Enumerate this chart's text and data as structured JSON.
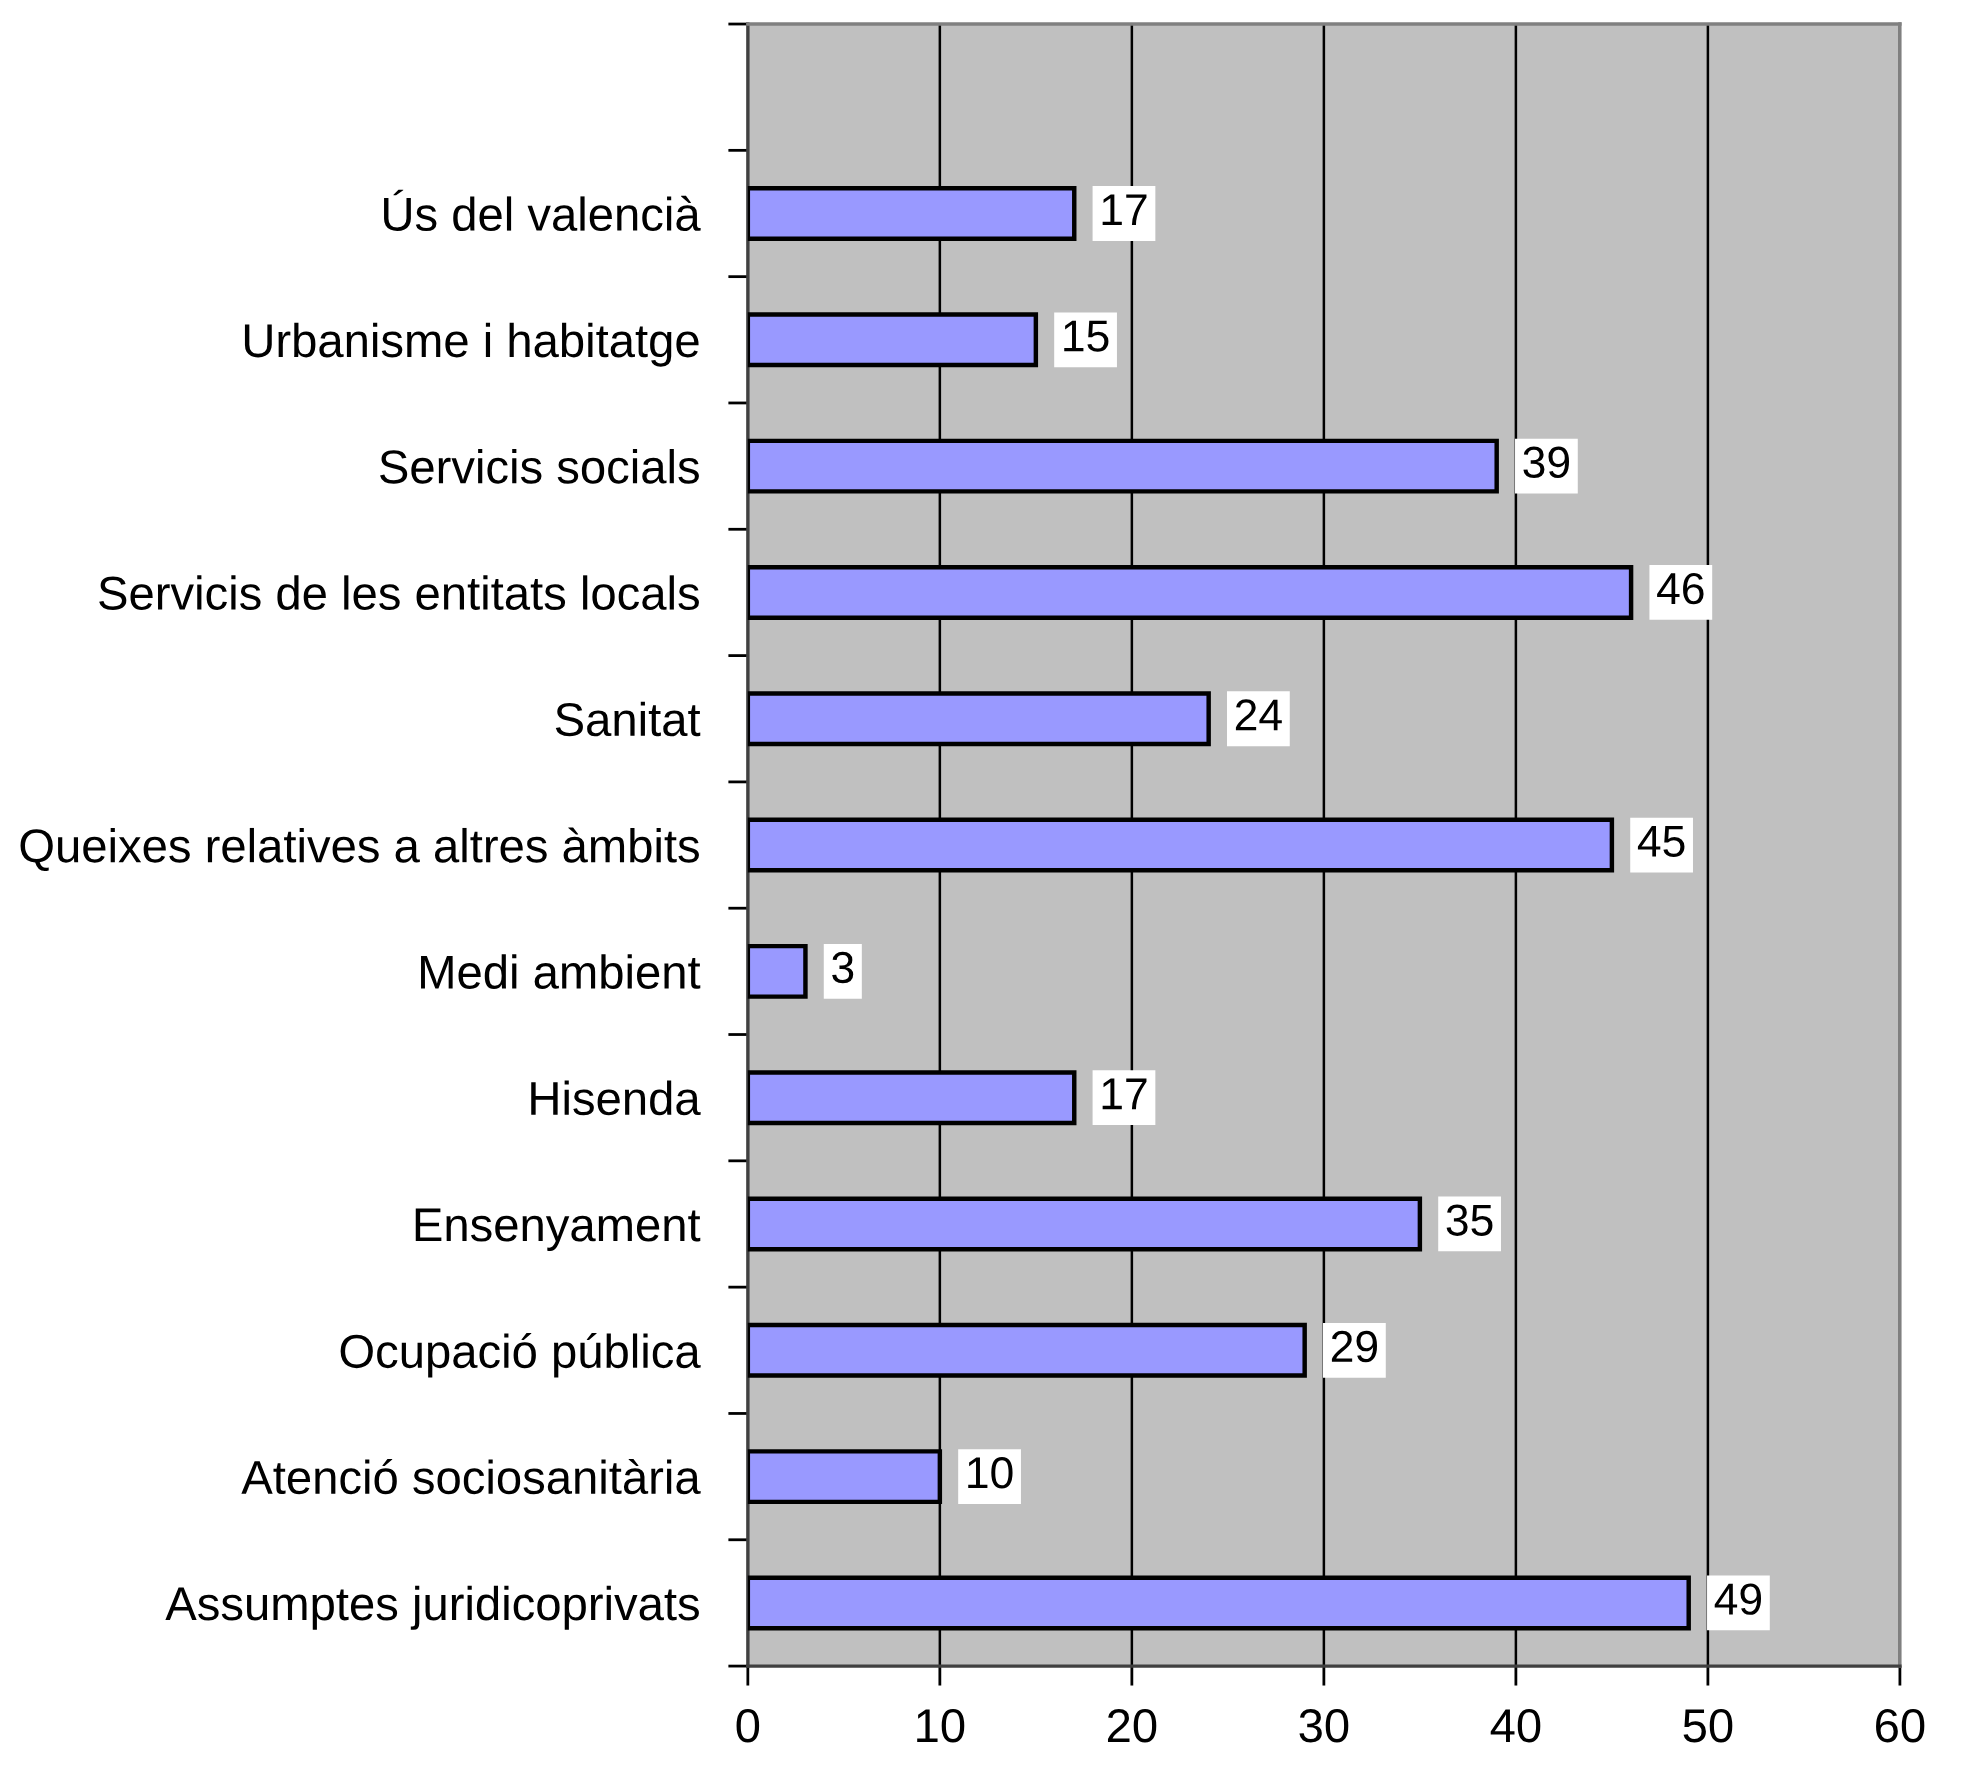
{
  "chart_data": {
    "type": "bar",
    "orientation": "horizontal",
    "categories": [
      null,
      "Ús del valencià",
      "Urbanisme i habitatge",
      "Servicis socials",
      "Servicis de les entitats locals",
      "Sanitat",
      "Queixes relatives a altres àmbits",
      "Medi ambient",
      "Hisenda",
      "Ensenyament",
      "Ocupació pública",
      "Atenció sociosanitària",
      "Assumptes juridicoprivats"
    ],
    "values": [
      null,
      17,
      15,
      39,
      46,
      24,
      45,
      3,
      17,
      35,
      29,
      10,
      49
    ],
    "color": "#9999ff",
    "xlim": [
      0,
      60
    ],
    "xticks": [
      0,
      10,
      20,
      30,
      40,
      50,
      60
    ],
    "grid": "x",
    "data_labels": true
  }
}
